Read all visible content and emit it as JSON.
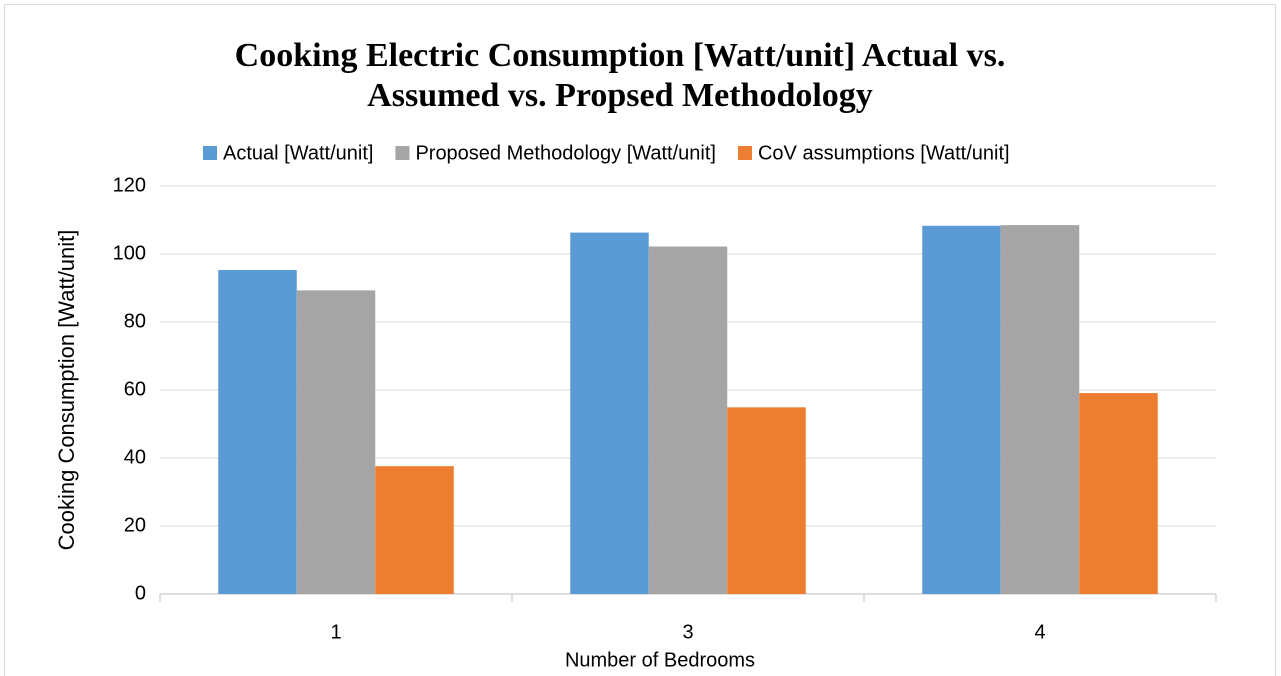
{
  "chart_data": {
    "type": "bar",
    "title": "Cooking Electric Consumption [Watt/unit] Actual vs. Assumed vs. Propsed Methodology",
    "x_label": "Number of Bedrooms",
    "y_label": "Cooking Consumption [Watt/unit]",
    "categories": [
      "1",
      "3",
      "4"
    ],
    "series": [
      {
        "name": "Actual [Watt/unit]",
        "color": "#5b9bd5",
        "values": [
          95.3,
          106.3,
          108.3
        ]
      },
      {
        "name": "Proposed Methodology [Watt/unit]",
        "color": "#a5a5a5",
        "values": [
          89.3,
          102.2,
          108.5
        ]
      },
      {
        "name": "CoV assumptions [Watt/unit]",
        "color": "#ed7d31",
        "values": [
          37.6,
          54.9,
          59.1
        ]
      }
    ],
    "ylim": [
      0,
      120
    ],
    "yticks": [
      0,
      20,
      40,
      60,
      80,
      100,
      120
    ],
    "grid": true
  }
}
